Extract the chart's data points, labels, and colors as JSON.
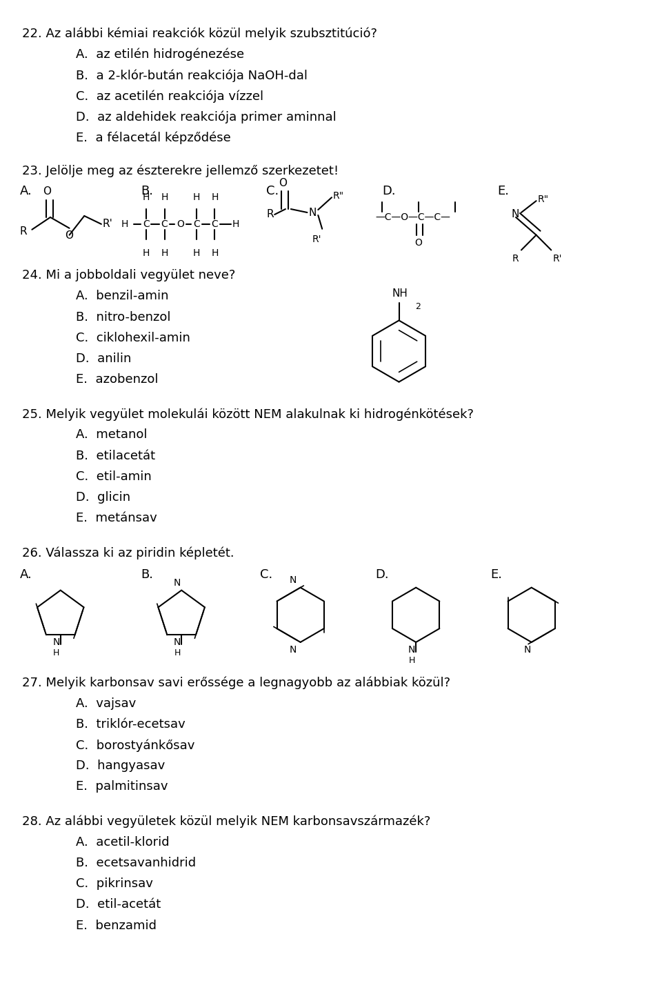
{
  "bg_color": "#ffffff",
  "text_color": "#000000",
  "questions": [
    {
      "num": "22.",
      "text": "Az alábbi kémiai reakciók közül melyik szubsztitúció?",
      "options": [
        [
          "A.",
          "az etilén hidrogénezése"
        ],
        [
          "B.",
          "a 2-klór-bután reakciója NaOH-dal"
        ],
        [
          "C.",
          "az acetilén reakciója vízzel"
        ],
        [
          "D.",
          "az aldehidek reakciója primer aminnal"
        ],
        [
          "E.",
          "a félacetál képződése"
        ]
      ]
    },
    {
      "num": "23.",
      "text": "Jelölje meg az észterekre jellemző szerkezetet!",
      "options": []
    },
    {
      "num": "24.",
      "text": "Mi a jobboldali vegyület neve?",
      "options": [
        [
          "A.",
          "benzil-amin"
        ],
        [
          "B.",
          "nitro-benzol"
        ],
        [
          "C.",
          "ciklohexil-amin"
        ],
        [
          "D.",
          "anilin"
        ],
        [
          "E.",
          "azobenzol"
        ]
      ]
    },
    {
      "num": "25.",
      "text": "Melyik vegyület molekulái között NEM alakulnak ki hidrogénkötések?",
      "options": [
        [
          "A.",
          "metanol"
        ],
        [
          "B.",
          "etilacetát"
        ],
        [
          "C.",
          "etil-amin"
        ],
        [
          "D.",
          "glicin"
        ],
        [
          "E.",
          "metánsav"
        ]
      ]
    },
    {
      "num": "26.",
      "text": "Válassza ki az piridin képletét.",
      "options": []
    },
    {
      "num": "27.",
      "text": "Melyik karbonsav savi erőssége a legnagyobb az alábbiak közül?",
      "options": [
        [
          "A.",
          "vajsav"
        ],
        [
          "B.",
          "triklór-ecetsav"
        ],
        [
          "C.",
          "borostyánkősav"
        ],
        [
          "D.",
          "hangyasav"
        ],
        [
          "E.",
          "palmitinsav"
        ]
      ]
    },
    {
      "num": "28.",
      "text": "Az alábbi vegyületek közül melyik NEM karbonsavszármazék?",
      "options": [
        [
          "A.",
          "acetil-klorid"
        ],
        [
          "B.",
          "ecetsavanhidrid"
        ],
        [
          "C.",
          "pikrinsav"
        ],
        [
          "D.",
          "etil-acetát"
        ],
        [
          "E.",
          "benzamid"
        ]
      ]
    }
  ]
}
